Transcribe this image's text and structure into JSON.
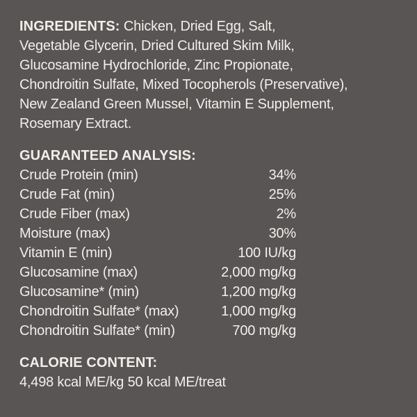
{
  "colors": {
    "background": "#595554",
    "text": "#f1efec"
  },
  "ingredients": {
    "heading": "INGREDIENTS:",
    "first_line_rest": "Chicken, Dried Egg, Salt,",
    "lines": [
      "Vegetable Glycerin, Dried Cultured Skim Milk,",
      "Glucosamine Hydrochloride, Zinc Propionate,",
      "Chondroitin Sulfate, Mixed Tocopherols (Preservative),",
      "New Zealand Green Mussel, Vitamin E Supplement,",
      "Rosemary Extract."
    ]
  },
  "guaranteed_analysis": {
    "heading": "GUARANTEED ANALYSIS:",
    "rows": [
      {
        "label": "Crude Protein (min)",
        "value": "34%"
      },
      {
        "label": "Crude Fat (min)",
        "value": "25%"
      },
      {
        "label": "Crude Fiber (max)",
        "value": "2%"
      },
      {
        "label": "Moisture (max)",
        "value": "30%"
      },
      {
        "label": "Vitamin E (min)",
        "value": "100 IU/kg"
      },
      {
        "label": "Glucosamine (max)",
        "value": "2,000 mg/kg"
      },
      {
        "label": "Glucosamine* (min)",
        "value": "1,200 mg/kg"
      },
      {
        "label": "Chondroitin Sulfate* (max)",
        "value": "1,000 mg/kg"
      },
      {
        "label": "Chondroitin Sulfate* (min)",
        "value": "700 mg/kg"
      }
    ]
  },
  "calorie_content": {
    "heading": "CALORIE CONTENT:",
    "value": "4,498 kcal ME/kg 50 kcal ME/treat"
  }
}
